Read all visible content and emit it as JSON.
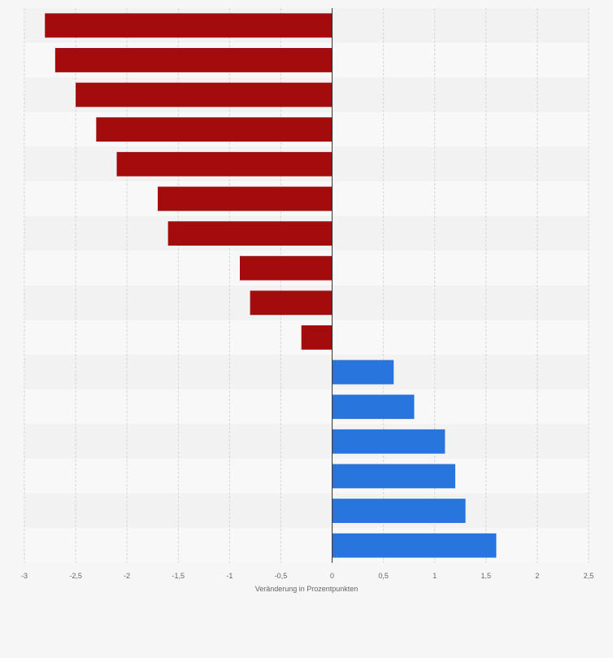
{
  "chart_data": {
    "type": "bar",
    "orientation": "horizontal",
    "title": "",
    "xlabel": "Veränderung in Prozentpunkten",
    "ylabel": "",
    "xlim": [
      -3,
      2.5
    ],
    "xticks": [
      -3,
      -2.5,
      -2,
      -1.5,
      -1,
      -0.5,
      0,
      0.5,
      1,
      1.5,
      2,
      2.5
    ],
    "xtick_labels": [
      "-3",
      "-2,5",
      "-2",
      "-1,5",
      "-1",
      "-0,5",
      "0",
      "0,5",
      "1",
      "1,5",
      "2",
      "2,5"
    ],
    "grid": true,
    "categories": [
      "",
      "",
      "",
      "",
      "",
      "",
      "",
      "",
      "",
      "",
      "",
      "",
      "",
      "",
      "",
      ""
    ],
    "values": [
      -2.8,
      -2.7,
      -2.5,
      -2.3,
      -2.1,
      -1.7,
      -1.6,
      -0.9,
      -0.8,
      -0.3,
      0.6,
      0.8,
      1.1,
      1.2,
      1.3,
      1.6
    ],
    "colors": {
      "negative": "#a30b0c",
      "positive": "#2876dd",
      "zero_line": "#333333",
      "gridline": "#d5d5d5",
      "band_dark": "#f2f2f2",
      "band_light": "#f8f8f8"
    }
  }
}
